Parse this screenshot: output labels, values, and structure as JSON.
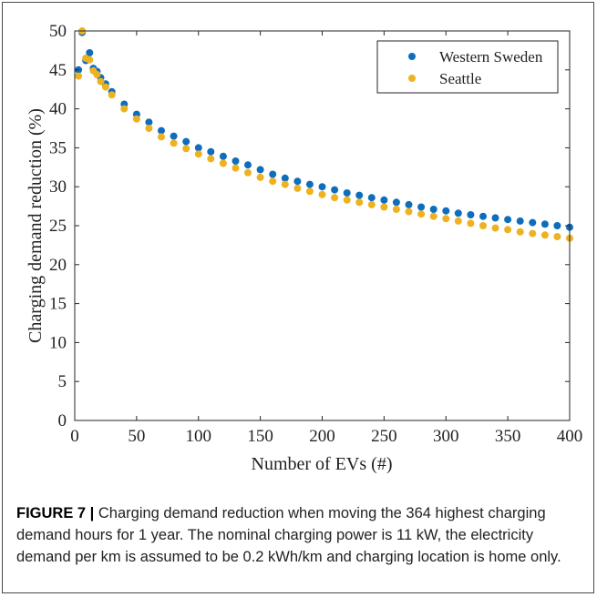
{
  "chart_data": {
    "type": "scatter",
    "xlabel": "Number of EVs (#)",
    "ylabel": "Charging demand reduction (%)",
    "xlim": [
      0,
      400
    ],
    "ylim": [
      0,
      50
    ],
    "xticks": [
      0,
      50,
      100,
      150,
      200,
      250,
      300,
      350,
      400
    ],
    "yticks": [
      0,
      5,
      10,
      15,
      20,
      25,
      30,
      35,
      40,
      45,
      50
    ],
    "legend_position": "top-right",
    "grid": false,
    "series": [
      {
        "name": "Western Sweden",
        "color": "#0e6ebd",
        "x": [
          3,
          6,
          9,
          12,
          15,
          18,
          21,
          25,
          30,
          40,
          50,
          60,
          70,
          80,
          90,
          100,
          110,
          120,
          130,
          140,
          150,
          160,
          170,
          180,
          190,
          200,
          210,
          220,
          230,
          240,
          250,
          260,
          270,
          280,
          290,
          300,
          310,
          320,
          330,
          340,
          350,
          360,
          370,
          380,
          390,
          400
        ],
        "y": [
          45.0,
          49.8,
          46.2,
          47.2,
          45.2,
          44.8,
          44.0,
          43.2,
          42.2,
          40.6,
          39.3,
          38.3,
          37.2,
          36.5,
          35.8,
          35.0,
          34.5,
          33.9,
          33.3,
          32.8,
          32.2,
          31.6,
          31.1,
          30.7,
          30.3,
          30.0,
          29.6,
          29.2,
          28.9,
          28.6,
          28.3,
          28.0,
          27.7,
          27.4,
          27.1,
          26.9,
          26.6,
          26.4,
          26.2,
          26.0,
          25.8,
          25.6,
          25.4,
          25.2,
          25.0,
          24.8
        ]
      },
      {
        "name": "Seattle",
        "color": "#eeb220",
        "x": [
          3,
          6,
          9,
          12,
          15,
          18,
          21,
          25,
          30,
          40,
          50,
          60,
          70,
          80,
          90,
          100,
          110,
          120,
          130,
          140,
          150,
          160,
          170,
          180,
          190,
          200,
          210,
          220,
          230,
          240,
          250,
          260,
          270,
          280,
          290,
          300,
          310,
          320,
          330,
          340,
          350,
          360,
          370,
          380,
          390,
          400
        ],
        "y": [
          44.2,
          50.0,
          46.5,
          46.3,
          44.9,
          44.4,
          43.5,
          42.8,
          41.8,
          40.0,
          38.7,
          37.5,
          36.4,
          35.6,
          34.9,
          34.2,
          33.6,
          33.0,
          32.4,
          31.8,
          31.2,
          30.7,
          30.3,
          29.8,
          29.4,
          29.0,
          28.6,
          28.3,
          28.0,
          27.7,
          27.4,
          27.1,
          26.8,
          26.5,
          26.2,
          25.9,
          25.6,
          25.3,
          25.0,
          24.7,
          24.5,
          24.2,
          24.0,
          23.8,
          23.6,
          23.4
        ]
      }
    ]
  },
  "caption": {
    "label": "FIGURE 7 |",
    "text": " Charging demand reduction when moving the 364 highest charging demand hours for 1 year. The nominal charging power is 11 kW, the electricity demand per km is assumed to be 0.2 kWh/km and charging location is home only."
  }
}
